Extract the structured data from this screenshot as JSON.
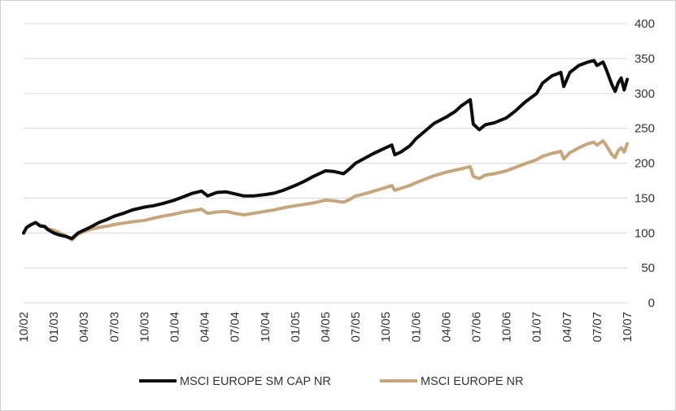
{
  "chart_data": {
    "type": "line",
    "title": "",
    "xlabel": "",
    "ylabel": "",
    "ylim": [
      0,
      400
    ],
    "yticks": [
      0,
      50,
      100,
      150,
      200,
      250,
      300,
      350,
      400
    ],
    "grid": "horizontal",
    "y_axis_side": "right",
    "legend_position": "bottom",
    "x_labels": [
      "10/02",
      "01/03",
      "04/03",
      "07/03",
      "10/03",
      "01/04",
      "04/04",
      "07/04",
      "10/04",
      "01/05",
      "04/05",
      "07/05",
      "10/05",
      "01/06",
      "04/06",
      "07/06",
      "10/06",
      "01/07",
      "04/07",
      "07/07",
      "10/07"
    ],
    "series": [
      {
        "name": "MSCI EUROPE SM CAP NR",
        "color": "#0d0d0d",
        "values": [
          [
            0,
            100
          ],
          [
            0.1,
            108
          ],
          [
            0.25,
            112
          ],
          [
            0.4,
            115
          ],
          [
            0.55,
            110
          ],
          [
            0.7,
            109
          ],
          [
            0.8,
            105
          ],
          [
            1.0,
            100
          ],
          [
            1.2,
            97
          ],
          [
            1.4,
            95
          ],
          [
            1.6,
            92
          ],
          [
            1.8,
            100
          ],
          [
            2.0,
            104
          ],
          [
            2.2,
            108
          ],
          [
            2.5,
            115
          ],
          [
            2.8,
            120
          ],
          [
            3.0,
            124
          ],
          [
            3.3,
            128
          ],
          [
            3.6,
            133
          ],
          [
            4.0,
            137
          ],
          [
            4.3,
            139
          ],
          [
            4.6,
            142
          ],
          [
            5.0,
            147
          ],
          [
            5.3,
            152
          ],
          [
            5.6,
            157
          ],
          [
            5.9,
            160
          ],
          [
            6.1,
            153
          ],
          [
            6.4,
            158
          ],
          [
            6.7,
            159
          ],
          [
            7.0,
            156
          ],
          [
            7.3,
            153
          ],
          [
            7.6,
            153
          ],
          [
            8.0,
            155
          ],
          [
            8.3,
            157
          ],
          [
            8.6,
            161
          ],
          [
            9.0,
            168
          ],
          [
            9.3,
            174
          ],
          [
            9.6,
            181
          ],
          [
            10.0,
            189
          ],
          [
            10.3,
            188
          ],
          [
            10.6,
            185
          ],
          [
            10.8,
            192
          ],
          [
            11.0,
            200
          ],
          [
            11.3,
            207
          ],
          [
            11.6,
            214
          ],
          [
            12.0,
            222
          ],
          [
            12.2,
            226
          ],
          [
            12.3,
            212
          ],
          [
            12.5,
            216
          ],
          [
            12.8,
            225
          ],
          [
            13.0,
            235
          ],
          [
            13.3,
            246
          ],
          [
            13.6,
            257
          ],
          [
            14.0,
            266
          ],
          [
            14.3,
            274
          ],
          [
            14.5,
            282
          ],
          [
            14.8,
            291
          ],
          [
            14.9,
            256
          ],
          [
            15.1,
            248
          ],
          [
            15.3,
            255
          ],
          [
            15.6,
            258
          ],
          [
            16.0,
            265
          ],
          [
            16.3,
            275
          ],
          [
            16.6,
            287
          ],
          [
            17.0,
            300
          ],
          [
            17.2,
            315
          ],
          [
            17.5,
            325
          ],
          [
            17.8,
            330
          ],
          [
            17.9,
            310
          ],
          [
            18.1,
            330
          ],
          [
            18.4,
            340
          ],
          [
            18.7,
            345
          ],
          [
            18.9,
            347
          ],
          [
            19.0,
            340
          ],
          [
            19.2,
            345
          ],
          [
            19.3,
            335
          ],
          [
            19.5,
            312
          ],
          [
            19.6,
            303
          ],
          [
            19.7,
            315
          ],
          [
            19.8,
            322
          ],
          [
            19.9,
            305
          ],
          [
            20.0,
            320
          ]
        ]
      },
      {
        "name": "MSCI EUROPE NR",
        "color": "#c6a67c",
        "values": [
          [
            0,
            100
          ],
          [
            0.1,
            108
          ],
          [
            0.25,
            112
          ],
          [
            0.4,
            115
          ],
          [
            0.55,
            111
          ],
          [
            0.7,
            110
          ],
          [
            0.8,
            106
          ],
          [
            1.0,
            104
          ],
          [
            1.2,
            100
          ],
          [
            1.4,
            96
          ],
          [
            1.6,
            90
          ],
          [
            1.8,
            98
          ],
          [
            2.0,
            102
          ],
          [
            2.2,
            105
          ],
          [
            2.5,
            108
          ],
          [
            2.8,
            110
          ],
          [
            3.0,
            112
          ],
          [
            3.3,
            114
          ],
          [
            3.6,
            116
          ],
          [
            4.0,
            118
          ],
          [
            4.3,
            121
          ],
          [
            4.6,
            124
          ],
          [
            5.0,
            127
          ],
          [
            5.3,
            130
          ],
          [
            5.6,
            132
          ],
          [
            5.9,
            134
          ],
          [
            6.1,
            128
          ],
          [
            6.4,
            130
          ],
          [
            6.7,
            131
          ],
          [
            7.0,
            128
          ],
          [
            7.3,
            126
          ],
          [
            7.6,
            128
          ],
          [
            8.0,
            131
          ],
          [
            8.3,
            133
          ],
          [
            8.6,
            136
          ],
          [
            9.0,
            139
          ],
          [
            9.3,
            141
          ],
          [
            9.6,
            143
          ],
          [
            10.0,
            147
          ],
          [
            10.3,
            146
          ],
          [
            10.6,
            144
          ],
          [
            10.8,
            148
          ],
          [
            11.0,
            153
          ],
          [
            11.3,
            156
          ],
          [
            11.6,
            160
          ],
          [
            12.0,
            165
          ],
          [
            12.2,
            168
          ],
          [
            12.3,
            161
          ],
          [
            12.5,
            164
          ],
          [
            12.8,
            168
          ],
          [
            13.0,
            172
          ],
          [
            13.3,
            177
          ],
          [
            13.6,
            182
          ],
          [
            14.0,
            187
          ],
          [
            14.3,
            190
          ],
          [
            14.5,
            192
          ],
          [
            14.8,
            195
          ],
          [
            14.9,
            181
          ],
          [
            15.1,
            178
          ],
          [
            15.3,
            183
          ],
          [
            15.6,
            185
          ],
          [
            16.0,
            189
          ],
          [
            16.3,
            194
          ],
          [
            16.6,
            199
          ],
          [
            17.0,
            205
          ],
          [
            17.2,
            210
          ],
          [
            17.5,
            214
          ],
          [
            17.8,
            217
          ],
          [
            17.9,
            206
          ],
          [
            18.1,
            215
          ],
          [
            18.4,
            222
          ],
          [
            18.7,
            228
          ],
          [
            18.9,
            230
          ],
          [
            19.0,
            226
          ],
          [
            19.2,
            232
          ],
          [
            19.3,
            226
          ],
          [
            19.5,
            212
          ],
          [
            19.6,
            208
          ],
          [
            19.7,
            218
          ],
          [
            19.8,
            222
          ],
          [
            19.9,
            216
          ],
          [
            20.0,
            228
          ]
        ]
      }
    ]
  }
}
